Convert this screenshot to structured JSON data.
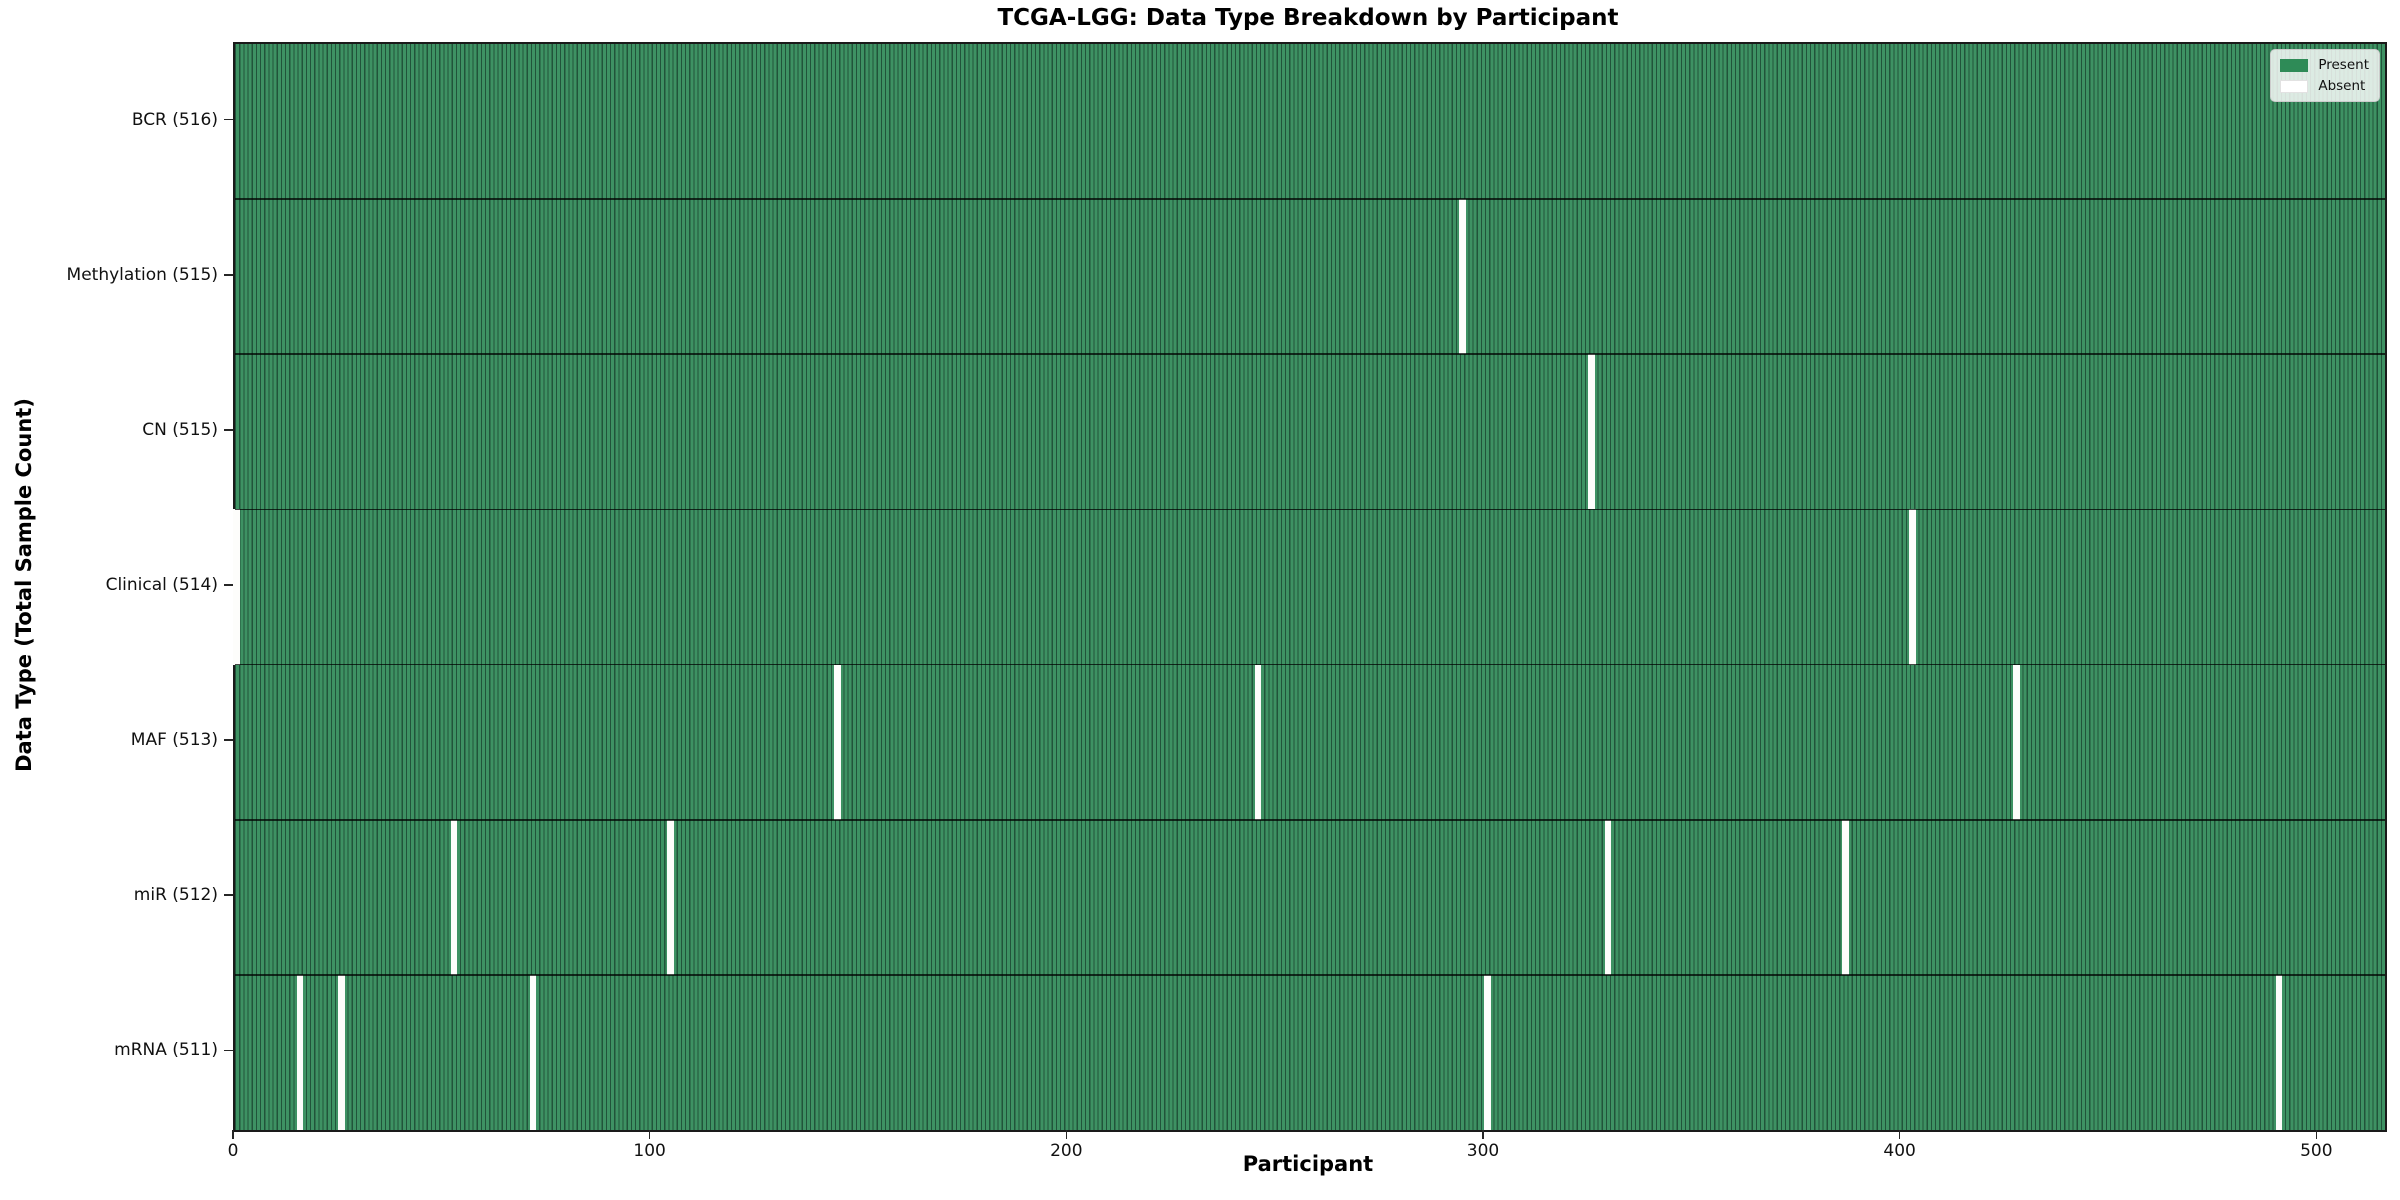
{
  "title": "TCGA-LGG: Data Type Breakdown by Participant",
  "xlabel": "Participant",
  "ylabel": "Data Type (Total Sample Count)",
  "legend": {
    "present_label": "Present",
    "absent_label": "Absent",
    "position": "upper right"
  },
  "colors": {
    "present": "#2e8b57",
    "present_stripe_fill": "#3e9263",
    "bar_edge": "#21543a",
    "absent": "#ffffff",
    "spine": "#1a1a1a"
  },
  "chart_data": {
    "type": "heatmap",
    "title": "TCGA-LGG: Data Type Breakdown by Participant",
    "xlabel": "Participant",
    "ylabel": "Data Type (Total Sample Count)",
    "xlim": [
      0,
      516
    ],
    "x_ticks": [
      0,
      100,
      200,
      300,
      400,
      500
    ],
    "total_participants": 516,
    "grid": false,
    "legend_entries": [
      "Present",
      "Absent"
    ],
    "legend_position": "upper right",
    "rows": [
      {
        "label": "BCR (516)",
        "data_type": "BCR",
        "present_count": 516,
        "absent_count": 0,
        "absent_participants": []
      },
      {
        "label": "Methylation (515)",
        "data_type": "Methylation",
        "present_count": 515,
        "absent_count": 1,
        "absent_participants": [
          294
        ]
      },
      {
        "label": "CN (515)",
        "data_type": "CN",
        "present_count": 515,
        "absent_count": 1,
        "absent_participants": [
          325
        ]
      },
      {
        "label": "Clinical (514)",
        "data_type": "Clinical",
        "present_count": 514,
        "absent_count": 2,
        "absent_participants": [
          0,
          402
        ]
      },
      {
        "label": "MAF (513)",
        "data_type": "MAF",
        "present_count": 513,
        "absent_count": 3,
        "absent_participants": [
          144,
          245,
          427
        ]
      },
      {
        "label": "miR (512)",
        "data_type": "miR",
        "present_count": 512,
        "absent_count": 4,
        "absent_participants": [
          52,
          104,
          329,
          386
        ]
      },
      {
        "label": "mRNA (511)",
        "data_type": "mRNA",
        "present_count": 511,
        "absent_count": 5,
        "absent_participants": [
          15,
          25,
          71,
          300,
          490
        ]
      }
    ]
  }
}
